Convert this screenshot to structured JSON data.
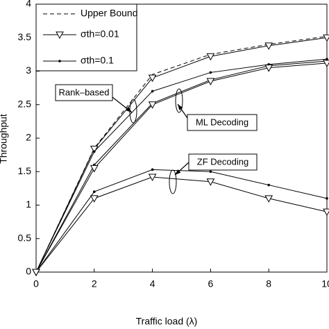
{
  "chart_data": {
    "type": "line",
    "x_label": "Traffic load (λ)",
    "y_label": "Throughput",
    "x": [
      0,
      2,
      4,
      6,
      8,
      10
    ],
    "xlim": [
      0,
      10
    ],
    "xticks": [
      0,
      2,
      4,
      6,
      8,
      10
    ],
    "ylim": [
      0,
      4
    ],
    "yticks": [
      0,
      0.5,
      1,
      1.5,
      2,
      2.5,
      3,
      3.5,
      4
    ],
    "legend": "upper left",
    "legend_entries": [
      "Upper Bound",
      "σth=0.01",
      "σth=0.1"
    ],
    "series": [
      {
        "color": "#000000",
        "dash": true,
        "marker": "none",
        "values": [
          0,
          1.85,
          2.95,
          3.25,
          3.4,
          3.52
        ]
      },
      {
        "color": "#000000",
        "marker": "triangle",
        "values": [
          0,
          1.84,
          2.9,
          3.22,
          3.38,
          3.5
        ]
      },
      {
        "color": "#000000",
        "marker": "dot",
        "values": [
          0,
          1.8,
          2.7,
          2.98,
          3.1,
          3.18
        ]
      },
      {
        "color": "#000000",
        "marker": "dot",
        "values": [
          0,
          1.6,
          2.52,
          2.87,
          3.08,
          3.15
        ]
      },
      {
        "color": "#000000",
        "marker": "triangle",
        "values": [
          0,
          1.55,
          2.5,
          2.85,
          3.05,
          3.12
        ]
      },
      {
        "color": "#000000",
        "marker": "dot",
        "values": [
          0,
          1.2,
          1.53,
          1.5,
          1.3,
          1.1
        ]
      },
      {
        "color": "#000000",
        "marker": "triangle",
        "values": [
          0,
          1.1,
          1.42,
          1.35,
          1.1,
          0.9
        ]
      }
    ],
    "annotations": [
      "Rank–based",
      "ML Decoding",
      "ZF Decoding"
    ]
  }
}
